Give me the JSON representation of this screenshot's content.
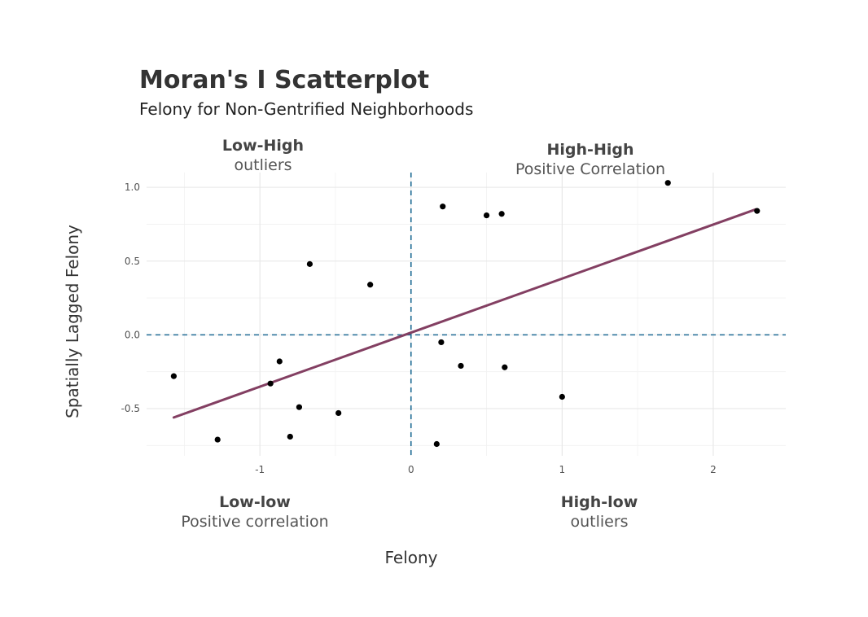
{
  "chart_data": {
    "type": "scatter",
    "title": "Moran's I Scatterplot",
    "subtitle": "Felony for Non-Gentrified Neighborhoods",
    "xlabel": "Felony",
    "ylabel": "Spatially Lagged Felony",
    "xlim": [
      -1.75,
      2.48
    ],
    "ylim": [
      -0.82,
      1.1
    ],
    "x_ticks": [
      -1,
      0,
      1,
      2
    ],
    "y_ticks": [
      -0.5,
      0.0,
      0.5,
      1.0
    ],
    "x_tick_labels": [
      "-1",
      "0",
      "1",
      "2"
    ],
    "y_tick_labels": [
      "-0.5",
      "0.0",
      "0.5",
      "1.0"
    ],
    "grid": true,
    "points": [
      {
        "x": -1.57,
        "y": -0.28
      },
      {
        "x": -1.28,
        "y": -0.71
      },
      {
        "x": -0.93,
        "y": -0.33
      },
      {
        "x": -0.87,
        "y": -0.18
      },
      {
        "x": -0.8,
        "y": -0.69
      },
      {
        "x": -0.74,
        "y": -0.49
      },
      {
        "x": -0.67,
        "y": 0.48
      },
      {
        "x": -0.48,
        "y": -0.53
      },
      {
        "x": -0.27,
        "y": 0.34
      },
      {
        "x": 0.17,
        "y": -0.74
      },
      {
        "x": 0.2,
        "y": -0.05
      },
      {
        "x": 0.21,
        "y": 0.87
      },
      {
        "x": 0.33,
        "y": -0.21
      },
      {
        "x": 0.5,
        "y": 0.81
      },
      {
        "x": 0.6,
        "y": 0.82
      },
      {
        "x": 0.62,
        "y": -0.22
      },
      {
        "x": 1.0,
        "y": -0.42
      },
      {
        "x": 1.7,
        "y": 1.03
      },
      {
        "x": 2.29,
        "y": 0.84
      }
    ],
    "point_color": "#000000",
    "regression_line": {
      "x": [
        -1.57,
        2.28
      ],
      "y": [
        -0.56,
        0.85
      ],
      "color": "#833f62"
    },
    "reference_lines": {
      "x": 0,
      "y": 0,
      "color": "#1f6b94",
      "style": "dashed"
    },
    "annotations": {
      "low_high": {
        "label": "Low-High",
        "sublabel": "outliers"
      },
      "high_high": {
        "label": "High-High",
        "sublabel": "Positive Correlation"
      },
      "low_low": {
        "label": "Low-low",
        "sublabel": "Positive correlation"
      },
      "high_low": {
        "label": "High-low",
        "sublabel": "outliers"
      }
    }
  }
}
